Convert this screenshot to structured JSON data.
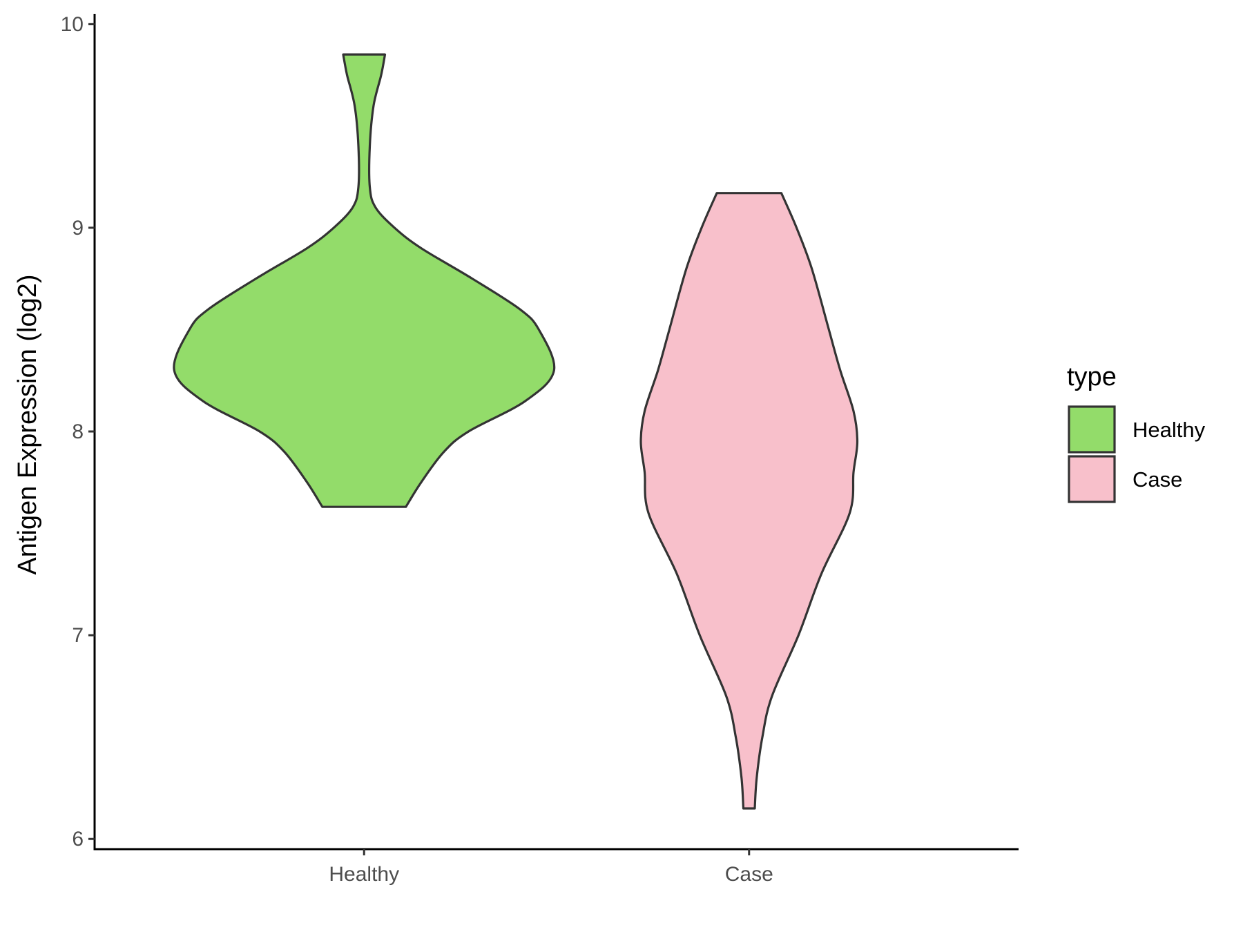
{
  "chart_data": {
    "type": "violin",
    "title": "",
    "xlabel": "",
    "ylabel": "Antigen Expression (log2)",
    "ylim": [
      5.95,
      10.05
    ],
    "yticks": [
      6,
      7,
      8,
      9,
      10
    ],
    "categories": [
      "Healthy",
      "Case"
    ],
    "grid": false,
    "legend": {
      "title": "type",
      "position": "right",
      "entries": [
        {
          "label": "Healthy",
          "color": "#93dc6a"
        },
        {
          "label": "Case",
          "color": "#f8c0cb"
        }
      ]
    },
    "series": [
      {
        "name": "Healthy",
        "color": "#93dc6a",
        "min": 7.63,
        "max": 9.85,
        "density_profile": [
          [
            7.63,
            0.22
          ],
          [
            7.75,
            0.3
          ],
          [
            7.9,
            0.42
          ],
          [
            8.0,
            0.55
          ],
          [
            8.15,
            0.85
          ],
          [
            8.3,
            1.0
          ],
          [
            8.5,
            0.92
          ],
          [
            8.6,
            0.82
          ],
          [
            8.75,
            0.57
          ],
          [
            8.9,
            0.3
          ],
          [
            9.0,
            0.16
          ],
          [
            9.1,
            0.06
          ],
          [
            9.2,
            0.03
          ],
          [
            9.4,
            0.03
          ],
          [
            9.6,
            0.05
          ],
          [
            9.75,
            0.09
          ],
          [
            9.85,
            0.11
          ]
        ]
      },
      {
        "name": "Case",
        "color": "#f8c0cb",
        "min": 6.15,
        "max": 9.17,
        "density_profile": [
          [
            6.15,
            0.03
          ],
          [
            6.3,
            0.04
          ],
          [
            6.5,
            0.07
          ],
          [
            6.7,
            0.12
          ],
          [
            7.0,
            0.26
          ],
          [
            7.3,
            0.38
          ],
          [
            7.6,
            0.53
          ],
          [
            7.8,
            0.55
          ],
          [
            7.95,
            0.57
          ],
          [
            8.1,
            0.55
          ],
          [
            8.3,
            0.48
          ],
          [
            8.5,
            0.42
          ],
          [
            8.8,
            0.33
          ],
          [
            9.0,
            0.25
          ],
          [
            9.17,
            0.17
          ]
        ]
      }
    ]
  }
}
